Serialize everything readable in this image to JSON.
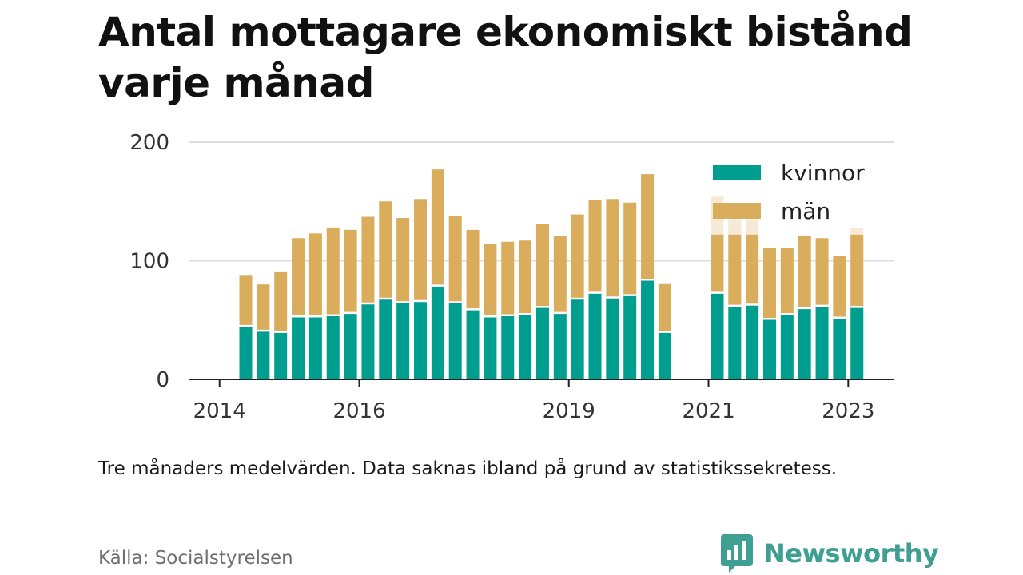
{
  "title": "Antal mottagare ekonomiskt bistånd varje månad",
  "note": "Tre månaders medelvärden. Data saknas ibland på grund av statistikssekretess.",
  "source": "Källa: Socialstyrelsen",
  "brand": {
    "name": "Newsworthy",
    "color": "#3f9f93",
    "logo_icon": "newsworthy-logo-icon"
  },
  "chart_data": {
    "type": "bar",
    "stacked": true,
    "x_ticks": [
      "2014",
      "2016",
      "2019",
      "2021",
      "2023"
    ],
    "y_ticks": [
      0,
      100,
      200
    ],
    "ylim": [
      0,
      200
    ],
    "grid": true,
    "legend_position": "top-right",
    "series": [
      {
        "name": "kvinnor",
        "color": "#009e8e",
        "values": [
          45,
          41,
          40,
          53,
          53,
          54,
          56,
          64,
          68,
          65,
          66,
          79,
          65,
          59,
          53,
          54,
          55,
          61,
          56,
          68,
          73,
          69,
          71,
          84,
          40,
          null,
          null,
          73,
          62,
          63,
          51,
          55,
          60,
          62,
          52,
          61
        ]
      },
      {
        "name": "män",
        "color": "#d9ad5b",
        "values": [
          43,
          39,
          51,
          66,
          70,
          74,
          70,
          73,
          82,
          71,
          86,
          98,
          73,
          67,
          61,
          62,
          62,
          70,
          65,
          71,
          78,
          83,
          78,
          89,
          41,
          null,
          null,
          49,
          60,
          59,
          60,
          56,
          61,
          57,
          52,
          61
        ]
      }
    ],
    "masked_top": [
      null,
      null,
      null,
      null,
      null,
      null,
      null,
      null,
      null,
      null,
      null,
      null,
      null,
      null,
      null,
      null,
      null,
      null,
      null,
      null,
      null,
      null,
      null,
      null,
      null,
      null,
      null,
      154,
      135,
      135,
      null,
      null,
      null,
      null,
      null,
      128
    ]
  }
}
